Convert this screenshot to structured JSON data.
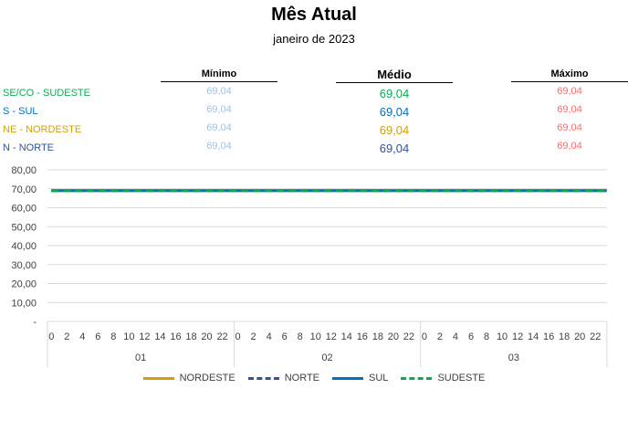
{
  "header": {
    "title": "Mês Atual",
    "subtitle": "janeiro de 2023"
  },
  "table": {
    "columns": {
      "min": "Mínimo",
      "med": "Médio",
      "max": "Máximo"
    },
    "rows": [
      {
        "label": "SE/CO - SUDESTE",
        "color": "#00b050",
        "min": "69,04",
        "med": "69,04",
        "max": "69,04"
      },
      {
        "label": "S - SUL",
        "color": "#0070c0",
        "min": "69,04",
        "med": "69,04",
        "max": "69,04"
      },
      {
        "label": "NE - NORDESTE",
        "color": "#d4a000",
        "min": "69,04",
        "med": "69,04",
        "max": "69,04"
      },
      {
        "label": "N - NORTE",
        "color": "#2f5597",
        "min": "69,04",
        "med": "69,04",
        "max": "69,04"
      }
    ]
  },
  "chart_data": {
    "type": "line",
    "ylim": [
      0,
      80
    ],
    "yticks": [
      "-",
      "10,00",
      "20,00",
      "30,00",
      "40,00",
      "50,00",
      "60,00",
      "70,00",
      "80,00"
    ],
    "ytick_values": [
      0,
      10,
      20,
      30,
      40,
      50,
      60,
      70,
      80
    ],
    "hour_ticks": [
      "0",
      "2",
      "4",
      "6",
      "8",
      "10",
      "12",
      "14",
      "16",
      "18",
      "20",
      "22"
    ],
    "days": [
      "01",
      "02",
      "03"
    ],
    "hours_per_day": 24,
    "grid": true,
    "legend_position": "bottom",
    "series": [
      {
        "name": "NORDESTE",
        "color": "#d4a000",
        "style": "solid",
        "value": 69.04
      },
      {
        "name": "NORTE",
        "color": "#2f5597",
        "style": "dashed",
        "value": 69.04
      },
      {
        "name": "SUL",
        "color": "#0070c0",
        "style": "solid",
        "value": 69.04
      },
      {
        "name": "SUDESTE",
        "color": "#00b050",
        "style": "dashed",
        "value": 69.04
      }
    ]
  }
}
